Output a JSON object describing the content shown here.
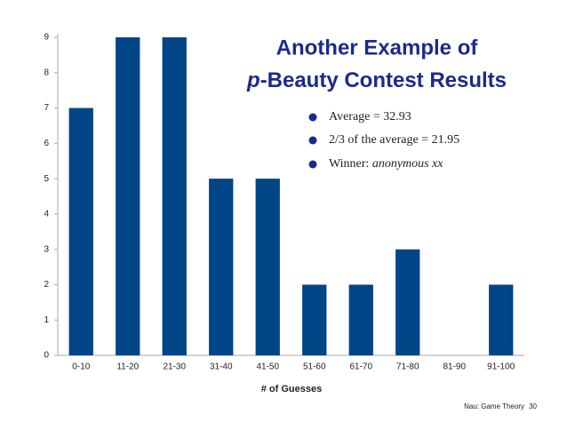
{
  "chart_data": {
    "type": "bar",
    "title": {
      "line1": "Another Example of",
      "italic": "p",
      "line2": "-Beauty Contest Results"
    },
    "bullets": [
      "Average = 32.93",
      "2/3 of the average = 21.95"
    ],
    "winner": {
      "label": "Winner:",
      "name": "anonymous xx"
    },
    "x_label": "# of Guesses",
    "categories": [
      "0-10",
      "11-20",
      "21-30",
      "31-40",
      "41-50",
      "51-60",
      "61-70",
      "71-80",
      "81-90",
      "91-100"
    ],
    "values": [
      7,
      9,
      9,
      5,
      5,
      2,
      2,
      3,
      0,
      2
    ],
    "color": "#004586",
    "ylim": [
      0,
      9
    ],
    "yticks": [
      0,
      1,
      2,
      3,
      4,
      5,
      6,
      7,
      8,
      9
    ],
    "grid": false
  },
  "footer": {
    "source": "Nau: Game Theory",
    "page": "30"
  }
}
